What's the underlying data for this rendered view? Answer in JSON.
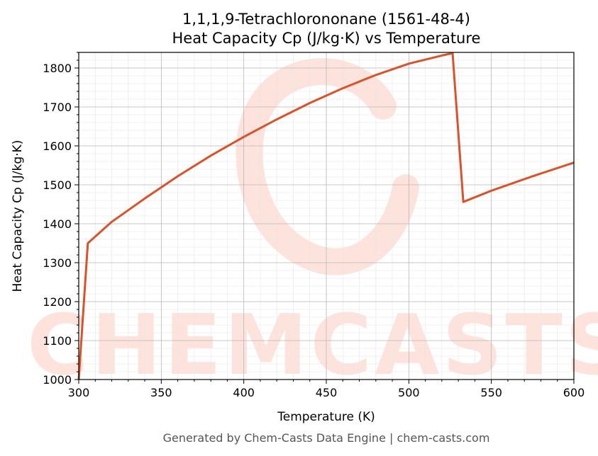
{
  "chart_data": {
    "type": "line",
    "title_line1": "1,1,1,9-Tetrachlorononane (1561-48-4)",
    "title_line2": "Heat Capacity Cp (J/kg·K) vs Temperature",
    "xlabel": "Temperature (K)",
    "ylabel": "Heat Capacity Cp (J/kg·K)",
    "xlim": [
      300,
      600
    ],
    "ylim": [
      1000,
      1840
    ],
    "xticks": [
      300,
      350,
      400,
      450,
      500,
      550,
      600
    ],
    "yticks": [
      1000,
      1100,
      1200,
      1300,
      1400,
      1500,
      1600,
      1700,
      1800
    ],
    "grid": true,
    "series": [
      {
        "color": "#d9532a",
        "x": [
          300,
          305.5,
          320,
          340,
          360,
          380,
          400,
          420,
          440,
          460,
          480,
          500,
          520,
          526.5,
          533,
          550,
          575,
          600
        ],
        "y": [
          1000,
          1350,
          1405,
          1465,
          1522,
          1575,
          1623,
          1668,
          1710,
          1748,
          1782,
          1811,
          1832,
          1838,
          1456,
          1485,
          1522,
          1557
        ]
      }
    ]
  },
  "watermark": {
    "text": "CHEMCASTS",
    "color": "#fde3dc"
  },
  "footer": "Generated by Chem-Casts Data Engine | chem-casts.com"
}
